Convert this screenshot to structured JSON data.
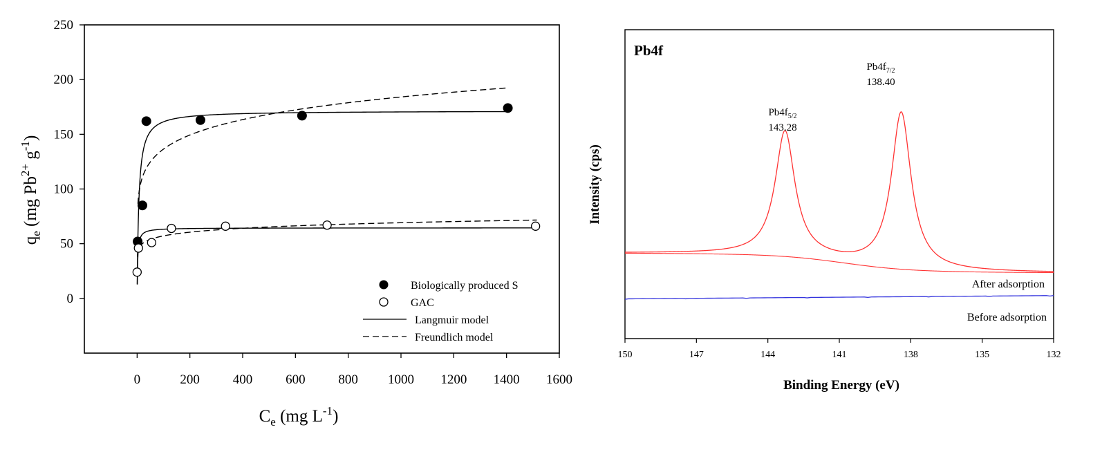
{
  "chart_data": [
    {
      "type": "scatter",
      "xlabel": {
        "main": "C",
        "sub": "e",
        "rest": " (mg L",
        "sup": "-1",
        "close": ")"
      },
      "ylabel": {
        "main": "q",
        "sub": "e",
        "rest": " (mg Pb",
        "sup1": "2+",
        "mid": " g",
        "sup2": "-1",
        "close": ")"
      },
      "xlim": [
        -200,
        1600
      ],
      "ylim": [
        -50,
        250
      ],
      "xticks": [
        "0",
        "200",
        "400",
        "600",
        "800",
        "1000",
        "1200",
        "1400",
        "1600"
      ],
      "yticks": [
        "0",
        "50",
        "100",
        "150",
        "200",
        "250"
      ],
      "series": [
        {
          "name": "Biologically produced S",
          "marker": "filled-circle",
          "x": [
            2,
            20,
            35,
            240,
            625,
            1405
          ],
          "y": [
            52,
            85,
            162,
            163,
            167,
            174
          ]
        },
        {
          "name": "GAC",
          "marker": "open-circle",
          "x": [
            0,
            5,
            55,
            130,
            335,
            720,
            1510
          ],
          "y": [
            24,
            46,
            51,
            64,
            66,
            67,
            66
          ]
        }
      ],
      "models": [
        {
          "name": "Langmuir model",
          "style": "solid"
        },
        {
          "name": "Freundlich model",
          "style": "dashed"
        }
      ],
      "legend": "bottom-right",
      "grid": false
    },
    {
      "type": "line",
      "title": "Pb4f",
      "xlabel": "Binding Energy (eV)",
      "ylabel": "Intensity (cps)",
      "xlim": [
        150,
        132
      ],
      "xticks": [
        "150",
        "147",
        "144",
        "141",
        "138",
        "135",
        "132"
      ],
      "peaks": [
        {
          "name": "Pb4f",
          "sub": "5/2",
          "value": "143.28",
          "energy": 143.28
        },
        {
          "name": "Pb4f",
          "sub": "7/2",
          "value": "138.40",
          "energy": 138.4
        }
      ],
      "series": [
        {
          "name": "After adsorption",
          "color": "#ff3333"
        },
        {
          "name": "Before adsorption",
          "color": "#3333dd"
        }
      ],
      "grid": false
    }
  ]
}
